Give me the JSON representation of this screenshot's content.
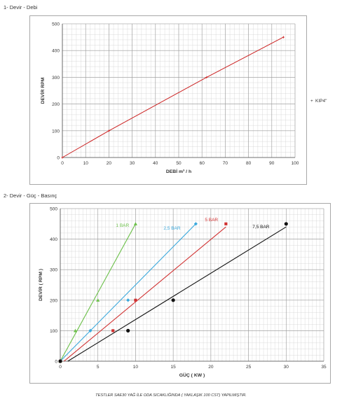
{
  "section1_title": "1- Devir - Debi",
  "section2_title": "2- Devir - Güç - Basınç",
  "footnote": "TESTLER SAE30 YAĞ İLE ODA SICAKLIĞINDA ( YAKLAŞIK 100 CST) YAPILMIŞTIR.",
  "chart_data": [
    {
      "type": "line",
      "xlabel": "DEBİ m³ / h",
      "ylabel": "DEVİR RPM",
      "xlim": [
        0,
        100
      ],
      "ylim": [
        0,
        500
      ],
      "xticks": [
        0,
        10,
        20,
        30,
        40,
        50,
        60,
        70,
        80,
        90,
        100
      ],
      "yticks": [
        0,
        100,
        200,
        300,
        400,
        500
      ],
      "grid": true,
      "legend_position": "right",
      "series": [
        {
          "name": "KIP4\"",
          "legend_marker": "+",
          "color": "#cc2222",
          "x": [
            0,
            20,
            62,
            95
          ],
          "y": [
            0,
            100,
            300,
            450
          ]
        }
      ]
    },
    {
      "type": "line",
      "xlabel": "GÜÇ ( KW )",
      "ylabel": "DEVİR ( RPM )",
      "xlim": [
        0,
        35
      ],
      "ylim": [
        0,
        500
      ],
      "xticks": [
        0,
        5,
        10,
        15,
        20,
        25,
        30,
        35
      ],
      "yticks": [
        0,
        100,
        200,
        300,
        400,
        500
      ],
      "grid": true,
      "series": [
        {
          "name": "1 BAR",
          "color": "#6cc04a",
          "marker": "triangle",
          "x": [
            0,
            2,
            5,
            10
          ],
          "y": [
            0,
            100,
            200,
            450
          ],
          "line": [
            [
              0,
              0
            ],
            [
              10,
              450
            ]
          ]
        },
        {
          "name": "2,5 BAR",
          "color": "#3aa8dc",
          "marker": "diamond",
          "x": [
            0,
            4,
            9,
            18
          ],
          "y": [
            0,
            100,
            200,
            450
          ],
          "line": [
            [
              0,
              0
            ],
            [
              18,
              450
            ]
          ]
        },
        {
          "name": "5 BAR",
          "color": "#d03030",
          "marker": "square",
          "x": [
            0,
            7,
            10,
            22
          ],
          "y": [
            0,
            100,
            200,
            450
          ],
          "line": [
            [
              0.5,
              0
            ],
            [
              22,
              440
            ]
          ]
        },
        {
          "name": "7,5 BAR",
          "color": "#111111",
          "marker": "circle",
          "x": [
            0,
            9,
            15,
            30
          ],
          "y": [
            0,
            100,
            200,
            450
          ],
          "line": [
            [
              1,
              0
            ],
            [
              30,
              440
            ]
          ]
        }
      ]
    }
  ]
}
